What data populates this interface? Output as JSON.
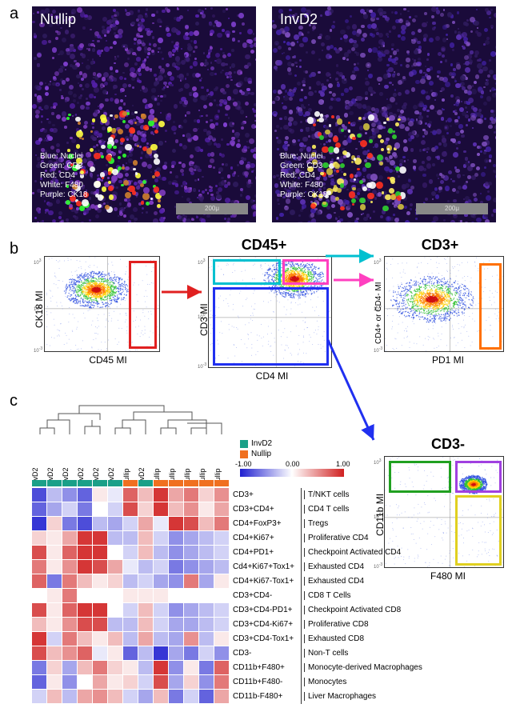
{
  "panel_a": {
    "label": "a",
    "left": {
      "title": "Nullip",
      "legend": [
        "Blue: Nuclei",
        "Green: CD3",
        "Red: CD4",
        "White: F480",
        "Purple: CK18"
      ],
      "scale": "200μ",
      "cell_colors": [
        "#3a1e6e",
        "#5320a8",
        "#2e1b5c",
        "#8040d0",
        "#7f3cc0",
        "#ff3020",
        "#30ff30",
        "#ffff40",
        "#ffffff",
        "#d08030"
      ]
    },
    "right": {
      "title": "InvD2",
      "legend": [
        "Blue: Nuclei",
        "Green: CD3",
        "Red: CD4",
        "White: F480",
        "Purple: CK18"
      ],
      "scale": "200μ",
      "cell_colors": [
        "#2e1b5c",
        "#4020a0",
        "#3a1e6e",
        "#5a30b0",
        "#8050c0",
        "#ff3020",
        "#30d030",
        "#fff060",
        "#ffffff",
        "#d0c040"
      ]
    }
  },
  "panel_b": {
    "label": "b",
    "plot1": {
      "ylabel": "CK18 MI",
      "xlabel": "CD45 MI",
      "gate_color": "#e02020"
    },
    "plot2": {
      "title": "CD45+",
      "ylabel": "CD3 MI",
      "xlabel": "CD4 MI",
      "gate_cyan": "#00c0d0",
      "gate_pink": "#ff40c0",
      "gate_blue": "#2030f0"
    },
    "plot3": {
      "title": "CD3+",
      "ylabel": "CD4+ or CD4- MI",
      "xlabel": "PD1 MI",
      "gate_color": "#ff7000"
    },
    "plot4": {
      "title": "CD3-",
      "ylabel": "CD11b MI",
      "xlabel": "F480 MI",
      "gate_green": "#20a020",
      "gate_purple": "#a040e0",
      "gate_yellow": "#e0d020"
    },
    "arrow_red": "#e02020",
    "arrow_cyan": "#00c0d0",
    "arrow_pink": "#ff40c0",
    "arrow_blue": "#2030f0"
  },
  "panel_c": {
    "label": "c",
    "groups": {
      "invd2": {
        "label": "InvD2",
        "color": "#1aa088"
      },
      "nullip": {
        "label": "Nullip",
        "color": "#f07020"
      }
    },
    "col_labels": [
      "InvD2",
      "InvD2",
      "InvD2",
      "InvD2",
      "InvD2",
      "InvD2",
      "Nullip",
      "InvD2",
      "Nullip",
      "Nullip",
      "Nullip",
      "Nullip",
      "Nullip"
    ],
    "col_group_colors": [
      "#1aa088",
      "#1aa088",
      "#1aa088",
      "#1aa088",
      "#1aa088",
      "#1aa088",
      "#f07020",
      "#1aa088",
      "#f07020",
      "#f07020",
      "#f07020",
      "#f07020",
      "#f07020"
    ],
    "colorbar": {
      "min": -1.0,
      "mid": 0.0,
      "max": 1.0,
      "neg_color": "#2020d0",
      "zero_color": "#ffffff",
      "pos_color": "#d02020"
    },
    "rows": [
      {
        "marker": "CD3+",
        "desc": "T/NKT cells",
        "vals": [
          -0.8,
          -0.3,
          -0.5,
          -0.7,
          0.1,
          -0.1,
          0.7,
          0.3,
          0.9,
          0.4,
          0.6,
          0.2,
          0.5
        ]
      },
      {
        "marker": "CD3+CD4+",
        "desc": "CD4 T cells",
        "vals": [
          -0.7,
          -0.4,
          -0.2,
          -0.6,
          0.0,
          -0.2,
          0.8,
          0.2,
          0.9,
          0.3,
          0.5,
          0.1,
          0.4
        ]
      },
      {
        "marker": "CD4+FoxP3+",
        "desc": "Tregs",
        "vals": [
          -0.9,
          0.2,
          -0.6,
          -0.8,
          -0.3,
          -0.4,
          -0.2,
          0.4,
          -0.1,
          0.9,
          0.8,
          0.3,
          0.6
        ]
      },
      {
        "marker": "CD4+Ki67+",
        "desc": "Proliferative CD4",
        "vals": [
          0.2,
          0.1,
          0.4,
          0.9,
          0.9,
          -0.3,
          -0.3,
          0.3,
          -0.2,
          -0.5,
          -0.4,
          -0.3,
          -0.2
        ]
      },
      {
        "marker": "CD4+PD1+",
        "desc": "Checkpoint Activated CD4",
        "vals": [
          0.8,
          0.1,
          0.7,
          0.9,
          0.9,
          0.0,
          -0.2,
          0.3,
          -0.3,
          -0.5,
          -0.4,
          -0.3,
          -0.2
        ]
      },
      {
        "marker": "Cd4+Ki67+Tox1+",
        "desc": "Exhausted CD4",
        "vals": [
          0.6,
          0.1,
          0.5,
          0.9,
          0.8,
          0.4,
          -0.1,
          -0.3,
          -0.2,
          -0.6,
          -0.5,
          -0.4,
          -0.3
        ]
      },
      {
        "marker": "CD4+Ki67-Tox1+",
        "desc": "Exhausted CD4",
        "vals": [
          0.7,
          -0.6,
          0.6,
          0.3,
          0.1,
          0.2,
          -0.3,
          -0.2,
          -0.4,
          -0.5,
          0.6,
          -0.4,
          0.1
        ]
      },
      {
        "marker": "CD3+CD4-",
        "desc": "CD8 T Cells",
        "vals": [
          0.0,
          0.1,
          0.6,
          0.0,
          0.0,
          0.0,
          0.1,
          0.1,
          0.1,
          0.0,
          0.0,
          0.0,
          0.0
        ]
      },
      {
        "marker": "CD3+CD4-PD1+",
        "desc": "Checkpoint Activated CD8",
        "vals": [
          0.8,
          0.1,
          0.7,
          0.9,
          0.9,
          0.0,
          -0.2,
          0.3,
          -0.2,
          -0.5,
          -0.4,
          -0.3,
          -0.2
        ]
      },
      {
        "marker": "CD3+CD4-Ki67+",
        "desc": "Proliferative CD8",
        "vals": [
          0.3,
          0.1,
          0.5,
          0.8,
          0.8,
          -0.3,
          -0.3,
          0.3,
          -0.2,
          -0.4,
          -0.4,
          -0.3,
          -0.2
        ]
      },
      {
        "marker": "CD3+CD4-Tox1+",
        "desc": "Exhausted CD8",
        "vals": [
          0.9,
          -0.2,
          0.6,
          0.3,
          0.1,
          0.3,
          -0.3,
          0.4,
          -0.3,
          -0.4,
          0.5,
          -0.3,
          0.1
        ]
      },
      {
        "marker": "CD3-",
        "desc": "Non-T cells",
        "vals": [
          0.8,
          0.3,
          0.5,
          0.7,
          -0.1,
          0.1,
          -0.7,
          -0.3,
          -0.9,
          -0.4,
          -0.6,
          -0.2,
          -0.5
        ]
      },
      {
        "marker": "CD11b+F480+",
        "desc": "Monocyte-derived Macrophages",
        "vals": [
          -0.6,
          0.2,
          -0.4,
          0.3,
          0.6,
          0.2,
          0.1,
          -0.3,
          0.9,
          -0.5,
          0.1,
          -0.6,
          0.7
        ]
      },
      {
        "marker": "CD11b+F480-",
        "desc": "Monocytes",
        "vals": [
          -0.7,
          0.1,
          -0.5,
          0.0,
          0.4,
          0.1,
          0.2,
          -0.2,
          0.8,
          -0.4,
          0.2,
          -0.5,
          0.6
        ]
      },
      {
        "marker": "CD11b-F480+",
        "desc": "Liver Macrophages",
        "vals": [
          -0.2,
          0.3,
          -0.3,
          0.4,
          0.5,
          0.3,
          -0.2,
          -0.4,
          0.3,
          -0.6,
          -0.2,
          -0.7,
          0.4
        ]
      }
    ]
  }
}
